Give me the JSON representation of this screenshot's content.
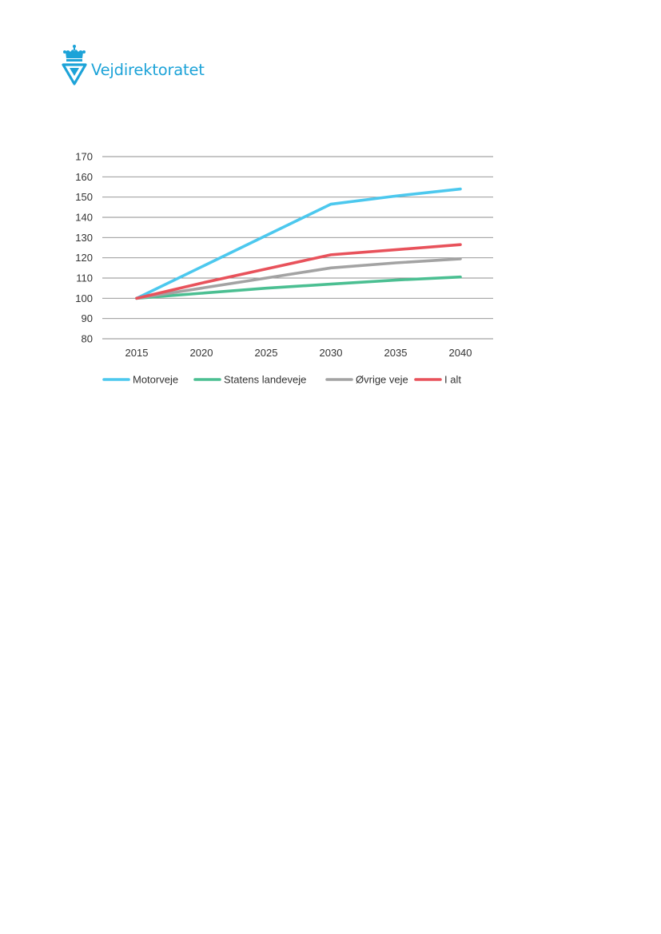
{
  "brand": {
    "name": "Vejdirektoratet",
    "color": "#1da3d8"
  },
  "chart_data": {
    "type": "line",
    "x": [
      2015,
      2020,
      2025,
      2030,
      2035,
      2040
    ],
    "ylim": [
      80,
      170
    ],
    "yticks": [
      80,
      90,
      100,
      110,
      120,
      130,
      140,
      150,
      160,
      170
    ],
    "grid": true,
    "legend_position": "bottom",
    "series": [
      {
        "name": "Motorveje",
        "color": "#4cc8ee",
        "values": [
          100,
          115.5,
          131,
          146.5,
          150.5,
          154
        ]
      },
      {
        "name": "Statens landeveje",
        "color": "#4bbf92",
        "values": [
          100,
          102.5,
          105,
          107,
          109,
          110.5
        ]
      },
      {
        "name": "Øvrige veje",
        "color": "#a3a3a3",
        "values": [
          100,
          105,
          110,
          115,
          117.5,
          119.5
        ]
      },
      {
        "name": "I alt",
        "color": "#e8525b",
        "values": [
          100,
          107.5,
          114.5,
          121.5,
          124,
          126.5
        ]
      }
    ]
  }
}
